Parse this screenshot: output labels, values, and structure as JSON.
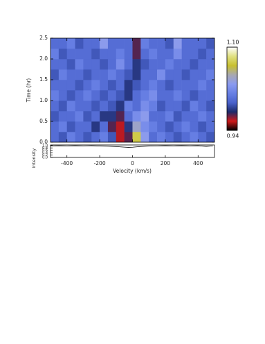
{
  "chart_data": [
    {
      "type": "heatmap",
      "ylabel": "Time (hr)",
      "x": [
        -475,
        -425,
        -375,
        -325,
        -275,
        -225,
        -175,
        -125,
        -75,
        -25,
        25,
        75,
        125,
        175,
        225,
        275,
        325,
        375,
        425,
        475
      ],
      "y": [
        0.125,
        0.375,
        0.625,
        0.875,
        1.125,
        1.375,
        1.625,
        1.875,
        2.125,
        2.375
      ],
      "z": [
        [
          1.0,
          0.99,
          1.01,
          1.0,
          0.99,
          1.0,
          1.01,
          0.99,
          0.96,
          0.97,
          1.07,
          1.03,
          1.0,
          1.01,
          1.0,
          0.99,
          1.0,
          1.01,
          1.0,
          0.99
        ],
        [
          1.0,
          1.01,
          0.99,
          1.0,
          1.0,
          0.98,
          1.0,
          0.97,
          0.96,
          0.98,
          1.04,
          1.02,
          1.01,
          1.0,
          0.99,
          1.0,
          1.01,
          1.0,
          0.99,
          1.0
        ],
        [
          0.99,
          1.0,
          1.0,
          1.01,
          0.99,
          1.0,
          0.98,
          0.98,
          0.97,
          1.0,
          1.02,
          1.03,
          1.0,
          1.0,
          1.01,
          0.99,
          1.0,
          1.0,
          1.01,
          1.0
        ],
        [
          1.0,
          0.99,
          1.01,
          1.0,
          1.0,
          0.99,
          1.0,
          0.99,
          0.98,
          1.01,
          1.0,
          1.02,
          1.01,
          0.99,
          1.0,
          1.0,
          0.99,
          1.01,
          1.0,
          0.99
        ],
        [
          1.01,
          1.0,
          0.99,
          1.0,
          1.01,
          1.0,
          0.99,
          1.0,
          0.99,
          0.98,
          1.0,
          1.01,
          1.02,
          1.0,
          1.0,
          1.01,
          1.0,
          0.99,
          1.0,
          1.0
        ],
        [
          1.0,
          1.0,
          1.0,
          0.99,
          1.0,
          1.01,
          1.0,
          0.99,
          1.0,
          0.98,
          0.99,
          1.0,
          1.01,
          1.0,
          0.99,
          1.0,
          1.0,
          1.0,
          1.01,
          1.0
        ],
        [
          0.99,
          1.01,
          1.0,
          1.0,
          0.99,
          1.0,
          1.0,
          1.01,
          1.0,
          0.99,
          0.98,
          1.0,
          1.0,
          1.02,
          1.0,
          1.0,
          0.99,
          1.0,
          1.0,
          1.01
        ],
        [
          1.0,
          1.0,
          0.99,
          1.01,
          1.0,
          1.0,
          0.99,
          1.0,
          1.02,
          1.0,
          0.98,
          0.99,
          1.0,
          1.0,
          1.01,
          1.0,
          1.0,
          0.99,
          1.0,
          1.0
        ],
        [
          1.01,
          0.99,
          1.0,
          1.0,
          1.0,
          0.99,
          1.0,
          1.0,
          1.01,
          1.0,
          0.97,
          1.0,
          1.01,
          1.0,
          1.0,
          1.02,
          1.0,
          1.0,
          0.99,
          1.0
        ],
        [
          1.0,
          1.0,
          1.01,
          0.99,
          1.0,
          1.0,
          1.03,
          1.0,
          1.0,
          1.0,
          0.97,
          1.01,
          1.0,
          1.0,
          0.99,
          1.03,
          1.0,
          1.0,
          1.0,
          0.99
        ]
      ],
      "xlim": [
        -500,
        500
      ],
      "ylim": [
        0,
        2.5
      ],
      "xticks": [
        -400,
        -200,
        0,
        200,
        400
      ],
      "yticks": [
        {
          "value": 0,
          "label": "0.0"
        },
        {
          "value": 0.5,
          "label": "0.5"
        },
        {
          "value": 1,
          "label": "1.0"
        },
        {
          "value": 1.5,
          "label": "1.5"
        },
        {
          "value": 2,
          "label": "2.0"
        },
        {
          "value": 2.5,
          "label": "2.5"
        }
      ],
      "zlim": [
        0.94,
        1.1
      ],
      "zticks": [
        {
          "value": 1.1,
          "label": "1.10"
        },
        {
          "value": 0.94,
          "label": "0.94"
        }
      ],
      "colormap": [
        "#000000",
        "#d01818",
        "#1c2a6a",
        "#4a62cc",
        "#6880e4",
        "#8a9af0",
        "#a8a8b0",
        "#c8c030",
        "#e0e080",
        "#ffffff"
      ]
    },
    {
      "type": "line",
      "xlabel": "Velocity (km/s)",
      "ylabel": "Intensity",
      "x": [
        -500,
        -450,
        -400,
        -350,
        -300,
        -250,
        -200,
        -150,
        -100,
        -50,
        -25,
        0,
        50,
        100,
        150,
        200,
        250,
        300,
        350,
        400,
        450,
        490
      ],
      "values": [
        0.97,
        0.98,
        0.97,
        0.98,
        0.97,
        0.98,
        0.96,
        0.94,
        0.91,
        0.87,
        0.85,
        0.86,
        0.92,
        0.96,
        0.97,
        0.98,
        0.97,
        0.98,
        0.97,
        0.98,
        0.93,
        0.97
      ],
      "color": "#000000",
      "xlim": [
        -500,
        500
      ],
      "ylim": [
        0,
        1.05
      ],
      "xticks": [
        -400,
        -200,
        0,
        200,
        400
      ],
      "yticks": [
        {
          "value": 0,
          "label": "0.0"
        },
        {
          "value": 0.2,
          "label": "0.2"
        },
        {
          "value": 0.4,
          "label": "0.4"
        },
        {
          "value": 0.6,
          "label": "0.6"
        },
        {
          "value": 0.8,
          "label": "0.8"
        },
        {
          "value": 1,
          "label": "1.0"
        }
      ]
    }
  ]
}
